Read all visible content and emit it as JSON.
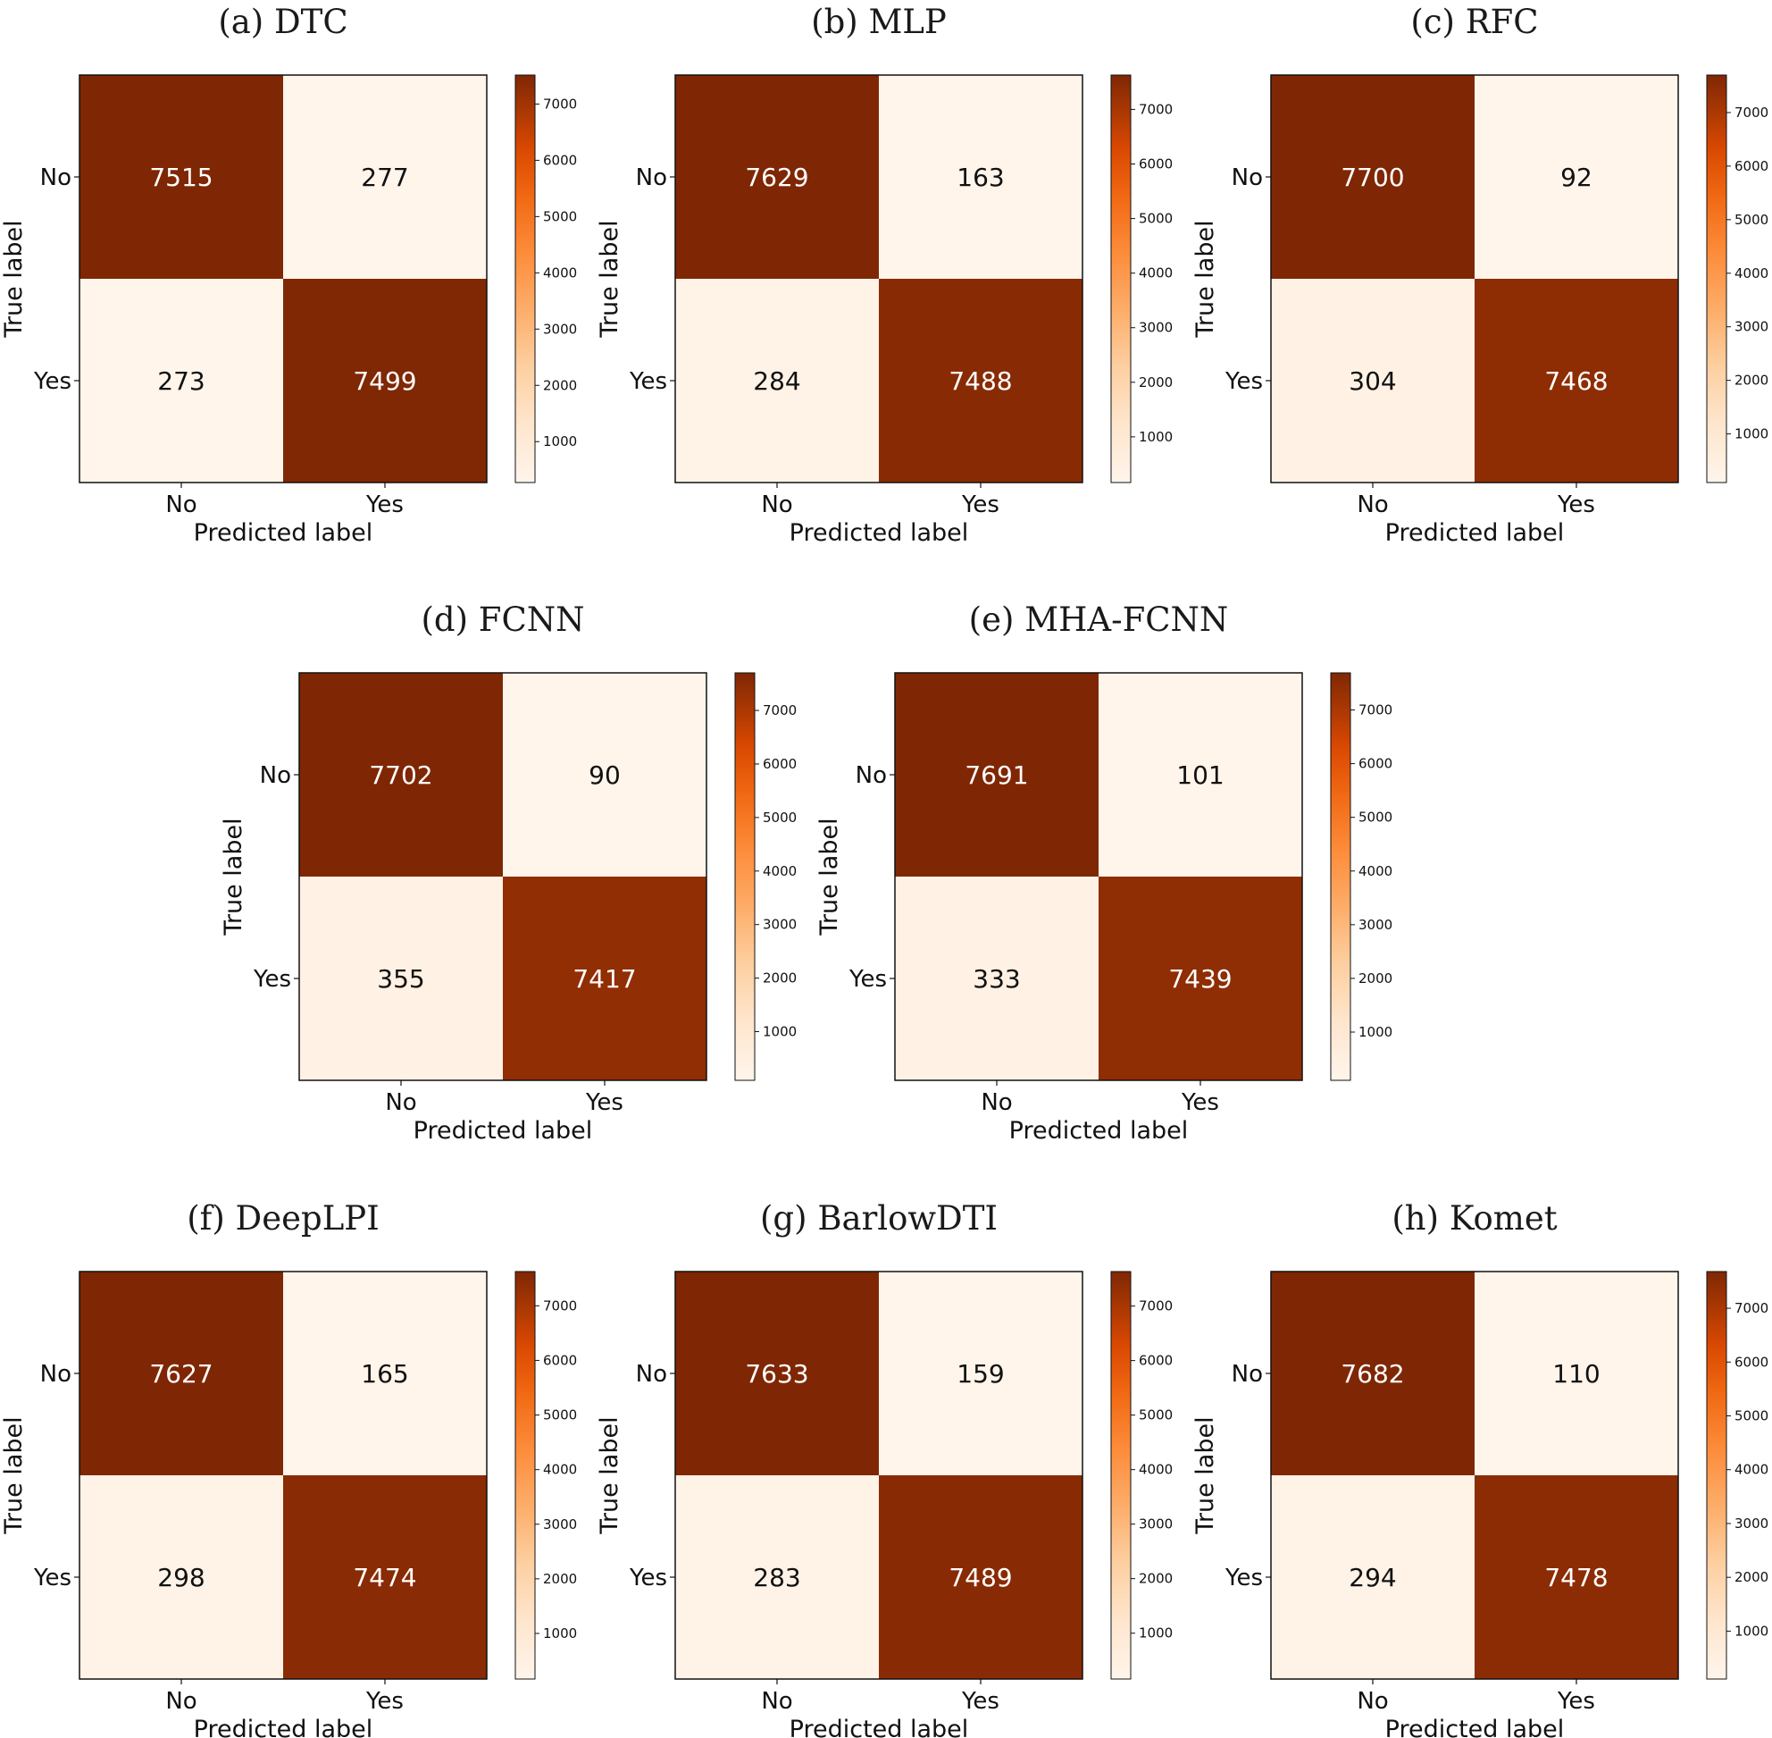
{
  "figure": {
    "background": "#ffffff"
  },
  "chart_data": [
    {
      "type": "heatmap",
      "title": "(a) DTC",
      "xlabel": "Predicted label",
      "ylabel": "True label",
      "x_categories": [
        "No",
        "Yes"
      ],
      "y_categories": [
        "No",
        "Yes"
      ],
      "values": [
        [
          7515,
          277
        ],
        [
          273,
          7499
        ]
      ],
      "colormap": "Oranges",
      "colorbar": {
        "range": [
          273,
          7515
        ],
        "ticks": [
          1000,
          2000,
          3000,
          4000,
          5000,
          6000,
          7000
        ]
      }
    },
    {
      "type": "heatmap",
      "title": "(b) MLP",
      "xlabel": "Predicted label",
      "ylabel": "True label",
      "x_categories": [
        "No",
        "Yes"
      ],
      "y_categories": [
        "No",
        "Yes"
      ],
      "values": [
        [
          7629,
          163
        ],
        [
          284,
          7488
        ]
      ],
      "colormap": "Oranges",
      "colorbar": {
        "range": [
          163,
          7629
        ],
        "ticks": [
          1000,
          2000,
          3000,
          4000,
          5000,
          6000,
          7000
        ]
      }
    },
    {
      "type": "heatmap",
      "title": "(c) RFC",
      "xlabel": "Predicted label",
      "ylabel": "True label",
      "x_categories": [
        "No",
        "Yes"
      ],
      "y_categories": [
        "No",
        "Yes"
      ],
      "values": [
        [
          7700,
          92
        ],
        [
          304,
          7468
        ]
      ],
      "colormap": "Oranges",
      "colorbar": {
        "range": [
          92,
          7700
        ],
        "ticks": [
          1000,
          2000,
          3000,
          4000,
          5000,
          6000,
          7000
        ]
      }
    },
    {
      "type": "heatmap",
      "title": "(d) FCNN",
      "xlabel": "Predicted label",
      "ylabel": "True label",
      "x_categories": [
        "No",
        "Yes"
      ],
      "y_categories": [
        "No",
        "Yes"
      ],
      "values": [
        [
          7702,
          90
        ],
        [
          355,
          7417
        ]
      ],
      "colormap": "Oranges",
      "colorbar": {
        "range": [
          90,
          7702
        ],
        "ticks": [
          1000,
          2000,
          3000,
          4000,
          5000,
          6000,
          7000
        ]
      }
    },
    {
      "type": "heatmap",
      "title": "(e) MHA-FCNN",
      "xlabel": "Predicted label",
      "ylabel": "True label",
      "x_categories": [
        "No",
        "Yes"
      ],
      "y_categories": [
        "No",
        "Yes"
      ],
      "values": [
        [
          7691,
          101
        ],
        [
          333,
          7439
        ]
      ],
      "colormap": "Oranges",
      "colorbar": {
        "range": [
          101,
          7691
        ],
        "ticks": [
          1000,
          2000,
          3000,
          4000,
          5000,
          6000,
          7000
        ]
      }
    },
    {
      "type": "heatmap",
      "title": "(f) DeepLPI",
      "xlabel": "Predicted label",
      "ylabel": "True label",
      "x_categories": [
        "No",
        "Yes"
      ],
      "y_categories": [
        "No",
        "Yes"
      ],
      "values": [
        [
          7627,
          165
        ],
        [
          298,
          7474
        ]
      ],
      "colormap": "Oranges",
      "colorbar": {
        "range": [
          165,
          7627
        ],
        "ticks": [
          1000,
          2000,
          3000,
          4000,
          5000,
          6000,
          7000
        ]
      }
    },
    {
      "type": "heatmap",
      "title": "(g) BarlowDTI",
      "xlabel": "Predicted label",
      "ylabel": "True label",
      "x_categories": [
        "No",
        "Yes"
      ],
      "y_categories": [
        "No",
        "Yes"
      ],
      "values": [
        [
          7633,
          159
        ],
        [
          283,
          7489
        ]
      ],
      "colormap": "Oranges",
      "colorbar": {
        "range": [
          159,
          7633
        ],
        "ticks": [
          1000,
          2000,
          3000,
          4000,
          5000,
          6000,
          7000
        ]
      }
    },
    {
      "type": "heatmap",
      "title": "(h) Komet",
      "xlabel": "Predicted label",
      "ylabel": "True label",
      "x_categories": [
        "No",
        "Yes"
      ],
      "y_categories": [
        "No",
        "Yes"
      ],
      "values": [
        [
          7682,
          110
        ],
        [
          294,
          7478
        ]
      ],
      "colormap": "Oranges",
      "colorbar": {
        "range": [
          110,
          7682
        ],
        "ticks": [
          1000,
          2000,
          3000,
          4000,
          5000,
          6000,
          7000
        ]
      }
    }
  ]
}
